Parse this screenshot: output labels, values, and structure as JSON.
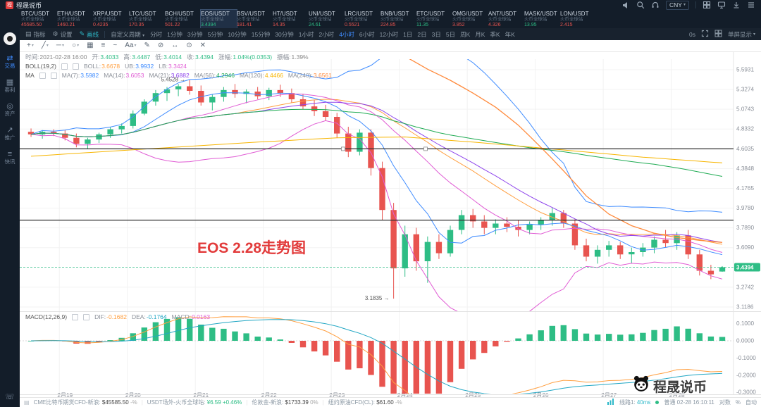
{
  "colors": {
    "up": "#2ebd85",
    "down": "#e8544f",
    "accent": "#3f8cff"
  },
  "header": {
    "logo_initial": "程",
    "logo_text": "程晟说币",
    "currency": "CNY",
    "pairs": [
      {
        "name": "BTC/USDT",
        "sub": "火币全球站",
        "price": "45585.50",
        "dir": "down"
      },
      {
        "name": "ETH/USDT",
        "sub": "火币全球站",
        "price": "1460.21",
        "dir": "down"
      },
      {
        "name": "XRP/USDT",
        "sub": "火币全球站",
        "price": "0.4235",
        "dir": "down"
      },
      {
        "name": "LTC/USDT",
        "sub": "火币全球站",
        "price": "170.35",
        "dir": "down"
      },
      {
        "name": "BCH/USDT",
        "sub": "火币全球站",
        "price": "501.22",
        "dir": "down"
      },
      {
        "name": "EOS/USDT",
        "sub": "火币全球站",
        "price": "3.4394",
        "dir": "up",
        "active": true
      },
      {
        "name": "BSV/USDT",
        "sub": "火币全球站",
        "price": "181.41",
        "dir": "down"
      },
      {
        "name": "HT/USDT",
        "sub": "火币全球站",
        "price": "14.35",
        "dir": "down"
      },
      {
        "name": "UNI/USDT",
        "sub": "火币全球站",
        "price": "24.61",
        "dir": "up"
      },
      {
        "name": "LRC/USDT",
        "sub": "火币全球站",
        "price": "0.5521",
        "dir": "down"
      },
      {
        "name": "BNB/USDT",
        "sub": "火币全球站",
        "price": "224.85",
        "dir": "down"
      },
      {
        "name": "ETC/USDT",
        "sub": "火币全球站",
        "price": "11.35",
        "dir": "up"
      },
      {
        "name": "OMG/USDT",
        "sub": "火币全球站",
        "price": "3.852",
        "dir": "down"
      },
      {
        "name": "ANT/USDT",
        "sub": "火币全球站",
        "price": "4.326",
        "dir": "down"
      },
      {
        "name": "MASK/USDT",
        "sub": "火币全球站",
        "price": "13.95",
        "dir": "up"
      },
      {
        "name": "LON/USDT",
        "sub": "火币全球站",
        "price": "2.415",
        "dir": "down"
      }
    ]
  },
  "sidebar": {
    "items": [
      {
        "icon": "⇄",
        "label": "交易",
        "name": "trade",
        "active": true
      },
      {
        "icon": "▦",
        "label": "套利",
        "name": "arbitrage"
      },
      {
        "icon": "◎",
        "label": "资产",
        "name": "assets"
      },
      {
        "icon": "↗",
        "label": "推广",
        "name": "promotion"
      },
      {
        "icon": "≡",
        "label": "快讯",
        "name": "news"
      }
    ],
    "bottom_icon": "☏"
  },
  "toolbar": {
    "menu": [
      {
        "label": "指标",
        "icon": "▤",
        "name": "indicators"
      },
      {
        "label": "设置",
        "icon": "⚙",
        "name": "settings"
      },
      {
        "label": "画线",
        "icon": "✎",
        "name": "draw",
        "active": true
      }
    ],
    "custom": "自定义周期",
    "timeframes": [
      "分时",
      "1分钟",
      "3分钟",
      "5分钟",
      "10分钟",
      "15分钟",
      "30分钟",
      "1小时",
      "2小时",
      "4小时",
      "6小时",
      "12小时",
      "1日",
      "2日",
      "3日",
      "5日",
      "周K",
      "月K",
      "季K",
      "年K"
    ],
    "active": "4小时",
    "countdown": "0s",
    "screen": "单屏显示"
  },
  "draw_toolbar": {
    "tools": [
      {
        "g": "+",
        "caret": true,
        "name": "cursor-tool"
      },
      {
        "g": "╱",
        "caret": true,
        "name": "trendline-tool"
      },
      {
        "g": "─",
        "caret": true,
        "name": "hline-tool"
      },
      {
        "g": "○",
        "caret": true,
        "name": "shape-tool"
      },
      {
        "g": "▦",
        "name": "grid-tool"
      },
      {
        "g": "≡",
        "name": "fib-tool"
      },
      {
        "g": "~",
        "name": "wave-tool"
      },
      {
        "g": "Aa",
        "caret": true,
        "name": "text-tool"
      },
      {
        "g": "✎",
        "name": "brush-tool"
      },
      {
        "g": "⊘",
        "name": "eraser-tool"
      },
      {
        "g": "↔",
        "name": "measure-tool"
      },
      {
        "g": "⊙",
        "name": "magnet-tool"
      },
      {
        "g": "✕",
        "name": "clear-tool"
      }
    ]
  },
  "info_rows": {
    "ohlc": {
      "items": [
        {
          "l": "时间:",
          "v": "2021-02-28 16:00",
          "c": "dim"
        },
        {
          "l": "开:",
          "v": "3.4033",
          "c": "up"
        },
        {
          "l": "高:",
          "v": "3.4487",
          "c": "up"
        },
        {
          "l": "低:",
          "v": "3.4014",
          "c": "up"
        },
        {
          "l": "收:",
          "v": "3.4394",
          "c": "up"
        },
        {
          "l": "涨幅:",
          "v": "1.04%(0.0353)",
          "c": "up"
        },
        {
          "l": "振幅:",
          "v": "1.39%",
          "c": "dim"
        }
      ]
    },
    "boll": {
      "title": "BOLL(19,2)",
      "items": [
        {
          "l": "BOLL:",
          "v": "3.6678",
          "c": "#ff9f40"
        },
        {
          "l": "UB:",
          "v": "3.9932",
          "c": "#3f8cff"
        },
        {
          "l": "LB:",
          "v": "3.3424",
          "c": "#e05bd4"
        }
      ]
    },
    "ma": {
      "title": "MA",
      "items": [
        {
          "l": "MA(7):",
          "v": "3.5982",
          "c": "#3f8cff"
        },
        {
          "l": "MA(14):",
          "v": "3.6053",
          "c": "#e05bd4"
        },
        {
          "l": "MA(21):",
          "v": "3.6882",
          "c": "#8e44ec"
        },
        {
          "l": "MA(56):",
          "v": "4.2946",
          "c": "#1fab53"
        },
        {
          "l": "MA(120):",
          "v": "4.4466",
          "c": "#f7b500"
        },
        {
          "l": "MA(240):",
          "v": "3.6561",
          "c": "#ff8a3c"
        }
      ]
    },
    "macd": {
      "title": "MACD(12,26,9)",
      "items": [
        {
          "l": "DIF:",
          "v": "-0.1682",
          "c": "#ff9f40"
        },
        {
          "l": "DEA:",
          "v": "-0.1764",
          "c": "#22a7c4"
        },
        {
          "l": "MACD:",
          "v": "0.0163",
          "c": "#e05bd4"
        }
      ]
    }
  },
  "annotation": {
    "text": "EOS 2.28走势图"
  },
  "watermark": {
    "text": "程晟说币"
  },
  "chart_data": {
    "type": "candlestick",
    "symbol": "EOS/USDT",
    "timeframe": "4小时",
    "scale": "log",
    "candles": [
      [
        4.8,
        4.84,
        4.74,
        4.77
      ],
      [
        4.77,
        4.82,
        4.72,
        4.8
      ],
      [
        4.8,
        4.83,
        4.75,
        4.78
      ],
      [
        4.78,
        4.82,
        4.7,
        4.73
      ],
      [
        4.73,
        4.78,
        4.62,
        4.66
      ],
      [
        4.66,
        4.73,
        4.6,
        4.71
      ],
      [
        4.71,
        4.79,
        4.67,
        4.77
      ],
      [
        4.77,
        4.86,
        4.73,
        4.83
      ],
      [
        4.83,
        4.9,
        4.78,
        4.87
      ],
      [
        4.87,
        5.06,
        4.84,
        5.02
      ],
      [
        5.02,
        5.2,
        5.0,
        5.17
      ],
      [
        5.17,
        5.32,
        5.12,
        5.28
      ],
      [
        5.28,
        5.36,
        5.18,
        5.33
      ],
      [
        5.33,
        5.4,
        5.24,
        5.37
      ],
      [
        5.37,
        5.4528,
        5.26,
        5.31
      ],
      [
        5.31,
        5.38,
        5.12,
        5.16
      ],
      [
        5.16,
        5.26,
        5.06,
        5.23
      ],
      [
        5.23,
        5.36,
        5.17,
        5.32
      ],
      [
        5.32,
        5.4,
        5.22,
        5.27
      ],
      [
        5.27,
        5.33,
        5.15,
        5.3
      ],
      [
        5.3,
        5.36,
        5.2,
        5.24
      ],
      [
        5.24,
        5.35,
        5.19,
        5.32
      ],
      [
        5.32,
        5.39,
        5.23,
        5.28
      ],
      [
        5.28,
        5.34,
        5.16,
        5.2
      ],
      [
        5.2,
        5.27,
        5.07,
        5.11
      ],
      [
        5.11,
        5.19,
        4.99,
        5.05
      ],
      [
        5.05,
        5.13,
        4.93,
        4.98
      ],
      [
        4.98,
        5.03,
        4.73,
        4.78
      ],
      [
        4.78,
        4.86,
        4.51,
        4.57
      ],
      [
        4.57,
        4.83,
        4.53,
        4.79
      ],
      [
        4.79,
        4.83,
        4.31,
        4.39
      ],
      [
        4.39,
        4.46,
        3.86,
        3.96
      ],
      [
        3.96,
        4.03,
        3.1835,
        3.43
      ],
      [
        3.43,
        3.81,
        3.36,
        3.73
      ],
      [
        3.73,
        3.79,
        3.41,
        3.49
      ],
      [
        3.49,
        3.71,
        3.31,
        3.66
      ],
      [
        3.66,
        3.73,
        3.51,
        3.56
      ],
      [
        3.56,
        3.81,
        3.53,
        3.77
      ],
      [
        3.77,
        3.96,
        3.73,
        3.91
      ],
      [
        3.91,
        3.97,
        3.79,
        3.85
      ],
      [
        3.85,
        3.91,
        3.73,
        3.79
      ],
      [
        3.79,
        3.87,
        3.73,
        3.83
      ],
      [
        3.83,
        3.89,
        3.75,
        3.8
      ],
      [
        3.8,
        3.86,
        3.71,
        3.77
      ],
      [
        3.77,
        3.85,
        3.73,
        3.82
      ],
      [
        3.82,
        3.89,
        3.77,
        3.86
      ],
      [
        3.86,
        3.98,
        3.81,
        3.93
      ],
      [
        3.93,
        3.96,
        3.79,
        3.83
      ],
      [
        3.83,
        3.87,
        3.59,
        3.63
      ],
      [
        3.63,
        3.69,
        3.49,
        3.53
      ],
      [
        3.53,
        3.63,
        3.47,
        3.59
      ],
      [
        3.59,
        3.67,
        3.53,
        3.63
      ],
      [
        3.63,
        3.66,
        3.51,
        3.55
      ],
      [
        3.55,
        3.61,
        3.47,
        3.57
      ],
      [
        3.57,
        3.65,
        3.53,
        3.61
      ],
      [
        3.61,
        3.71,
        3.56,
        3.68
      ],
      [
        3.68,
        3.77,
        3.61,
        3.65
      ],
      [
        3.65,
        3.75,
        3.59,
        3.72
      ],
      [
        3.72,
        3.77,
        3.51,
        3.55
      ],
      [
        3.55,
        3.59,
        3.37,
        3.41
      ],
      [
        3.41,
        3.46,
        3.34,
        3.38
      ],
      [
        3.4033,
        3.4487,
        3.4014,
        3.4394
      ]
    ],
    "day_labels": [
      {
        "i": 3,
        "t": "2月19"
      },
      {
        "i": 9,
        "t": "2月20"
      },
      {
        "i": 15,
        "t": "2月21"
      },
      {
        "i": 21,
        "t": "2月22"
      },
      {
        "i": 27,
        "t": "2月23"
      },
      {
        "i": 33,
        "t": "2月24"
      },
      {
        "i": 39,
        "t": "2月25"
      },
      {
        "i": 45,
        "t": "2月26"
      },
      {
        "i": 51,
        "t": "2月27"
      },
      {
        "i": 57,
        "t": "2月28"
      }
    ],
    "y_axis_labels": [
      "5.5931",
      "5.3274",
      "5.0743",
      "4.8332",
      "4.6035",
      "4.3848",
      "4.1765",
      "3.9780",
      "3.7890",
      "3.6090",
      "3.2742",
      "3.1186"
    ],
    "macd_axis": [
      "0.1000",
      "0.0000",
      "-0.1000",
      "-0.2000",
      "-0.3000"
    ],
    "current_price": "3.4394",
    "high_annotation": "5.4528",
    "high_index": 14,
    "low_annotation": "3.1835",
    "low_index": 32,
    "hlines": [
      4.603,
      3.862
    ],
    "ma120_anchors": [
      [
        0,
        4.52
      ],
      [
        10,
        4.6
      ],
      [
        20,
        4.68
      ],
      [
        27,
        4.73
      ],
      [
        33,
        4.74
      ],
      [
        40,
        4.67
      ],
      [
        47,
        4.59
      ],
      [
        54,
        4.51
      ],
      [
        61,
        4.4466
      ]
    ],
    "ma240_anchors": [
      [
        31,
        5.95
      ],
      [
        33,
        5.78
      ],
      [
        35,
        5.6
      ],
      [
        37,
        5.45
      ],
      [
        39,
        5.28
      ],
      [
        41,
        5.1
      ],
      [
        43,
        4.88
      ],
      [
        45,
        4.62
      ],
      [
        47,
        4.36
      ],
      [
        49,
        4.1
      ],
      [
        51,
        3.92
      ],
      [
        53,
        3.81
      ],
      [
        55,
        3.74
      ],
      [
        57,
        3.7
      ],
      [
        59,
        3.675
      ],
      [
        61,
        3.656
      ]
    ]
  },
  "status": {
    "icon": "▤",
    "left": [
      {
        "label": "CME比特币期货CFD-新浪:",
        "value": "$45585.50",
        "pct": "-%",
        "dir": "flat"
      },
      {
        "label": "USDT场外-火币全球站:",
        "value": "¥6.59",
        "pct": "+0.46%",
        "dir": "up"
      },
      {
        "label": "伦敦金-新浪:",
        "value": "$1733.39",
        "pct": "0%",
        "dir": "flat"
      },
      {
        "label": "纽约原油CFD(CL):",
        "value": "$61.60",
        "pct": "-%",
        "dir": "flat"
      }
    ],
    "right": {
      "line": "线路1:",
      "latency": "40ms",
      "conn": "普通",
      "time": "02-28 16:10:11",
      "scale": "对数",
      "percent": "%",
      "auto": "自动"
    }
  }
}
